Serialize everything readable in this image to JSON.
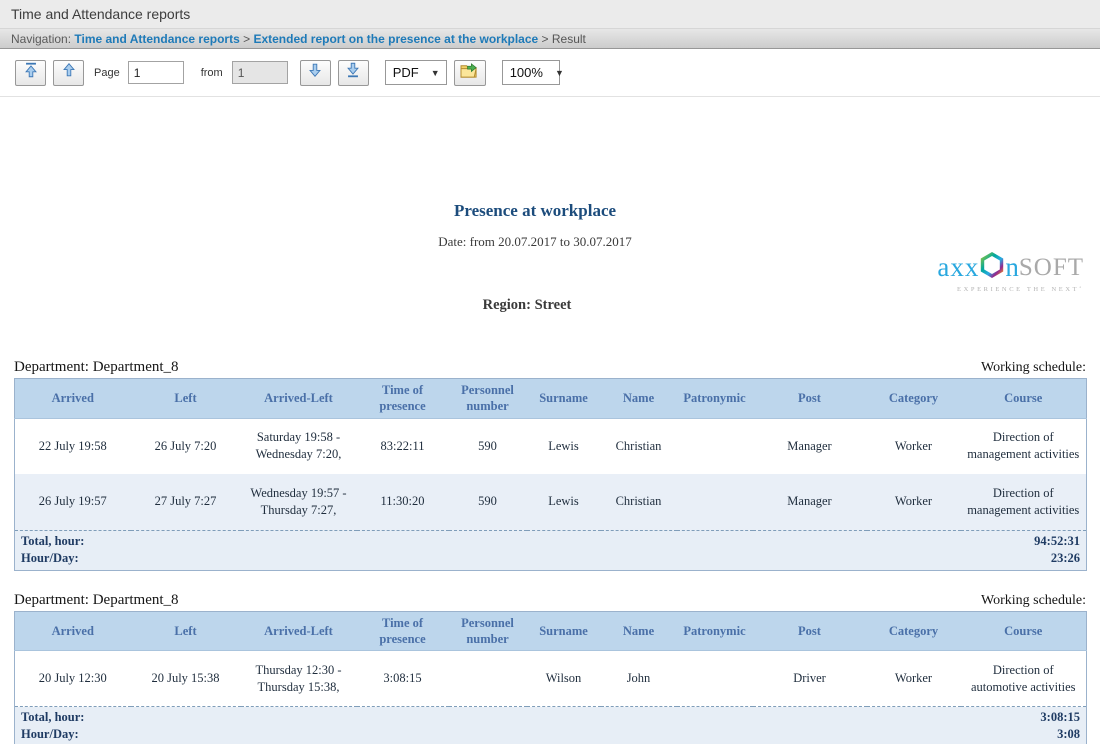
{
  "window": {
    "title": "Time and Attendance reports"
  },
  "breadcrumb": {
    "label": "Navigation: ",
    "separator": " > ",
    "items": [
      {
        "text": "Time and Attendance reports"
      },
      {
        "text": "Extended report on the presence at the workplace"
      },
      {
        "text": "Result"
      }
    ]
  },
  "toolbar": {
    "page_label": "Page",
    "page_value": "1",
    "from_label": "from",
    "total_pages_value": "1",
    "format_selected": "PDF",
    "zoom_selected": "100%",
    "caret": "▼",
    "icons": {
      "first_page": "arrow-bar-up",
      "prev_page": "arrow-up",
      "next_page": "arrow-down",
      "last_page": "arrow-bar-down",
      "export": "export-folder-arrow"
    }
  },
  "logo": {
    "part1": "axx",
    "part2": "n",
    "part3": "SOFT",
    "tagline": "EXPERIENCE THE NEXT˚"
  },
  "report": {
    "title": "Presence at workplace",
    "date_line": "Date: from 20.07.2017 to 30.07.2017",
    "region_line": "Region: Street",
    "sections": [
      {
        "department_label": "Department: Department_8",
        "working_schedule_label": "Working schedule:",
        "columns": [
          "Arrived",
          "Left",
          "Arrived-Left",
          "Time of presence",
          "Personnel number",
          "Surname",
          "Name",
          "Patronymic",
          "Post",
          "Category",
          "Course"
        ],
        "rows": [
          [
            "22 July 19:58",
            "26 July 7:20",
            "Saturday 19:58 - Wednesday 7:20,",
            "83:22:11",
            "590",
            "Lewis",
            "Christian",
            "",
            "Manager",
            "Worker",
            "Direction of management activities"
          ],
          [
            "26 July 19:57",
            "27 July 7:27",
            "Wednesday 19:57 - Thursday 7:27,",
            "11:30:20",
            "590",
            "Lewis",
            "Christian",
            "",
            "Manager",
            "Worker",
            "Direction of management activities"
          ]
        ],
        "totals": {
          "total_label": "Total, hour:",
          "total_value": "94:52:31",
          "hourday_label": "Hour/Day:",
          "hourday_value": "23:26"
        }
      },
      {
        "department_label": "Department: Department_8",
        "working_schedule_label": "Working schedule:",
        "columns": [
          "Arrived",
          "Left",
          "Arrived-Left",
          "Time of presence",
          "Personnel number",
          "Surname",
          "Name",
          "Patronymic",
          "Post",
          "Category",
          "Course"
        ],
        "rows": [
          [
            "20 July 12:30",
            "20 July 15:38",
            "Thursday 12:30 - Thursday 15:38,",
            "3:08:15",
            "",
            "Wilson",
            "John",
            "",
            "Driver",
            "Worker",
            "Direction of automotive activities"
          ]
        ],
        "totals": {
          "total_label": "Total, hour:",
          "total_value": "3:08:15",
          "hourday_label": "Hour/Day:",
          "hourday_value": "3:08"
        }
      }
    ]
  },
  "colors": {
    "link_blue": "#1e7ab8",
    "title_navy": "#1c4c7c",
    "table_header_bg": "#bdd6ec",
    "table_header_text": "#4a70a8",
    "alt_row_bg": "#e9eff7",
    "totals_bg": "#e7eef6",
    "totals_text": "#1f3b63",
    "logo_blue": "#29a8df",
    "logo_gray": "#a9a9a9",
    "toolbar_arrow": "#3c77b5"
  }
}
